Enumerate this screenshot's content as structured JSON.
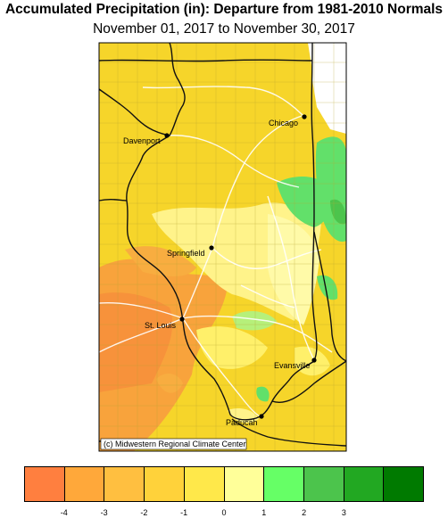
{
  "title": "Accumulated Precipitation (in): Departure from 1981-2010 Normals",
  "subtitle": "November 01, 2017 to November 30, 2017",
  "credit": "(c) Midwestern Regional Climate Center",
  "cities": [
    {
      "name": "Chicago"
    },
    {
      "name": "Davenport"
    },
    {
      "name": "Springfield"
    },
    {
      "name": "St. Louis"
    },
    {
      "name": "Evansville"
    },
    {
      "name": "Paducah"
    }
  ],
  "legend": {
    "colors": [
      "#ff7f3f",
      "#ffa83a",
      "#ffbf40",
      "#ffd23a",
      "#ffe84a",
      "#ffff99",
      "#66ff66",
      "#4cc44c",
      "#22a822",
      "#007a00"
    ],
    "ticks": [
      "-4",
      "-3",
      "-2",
      "-1",
      "0",
      "1",
      "2",
      "3"
    ]
  }
}
